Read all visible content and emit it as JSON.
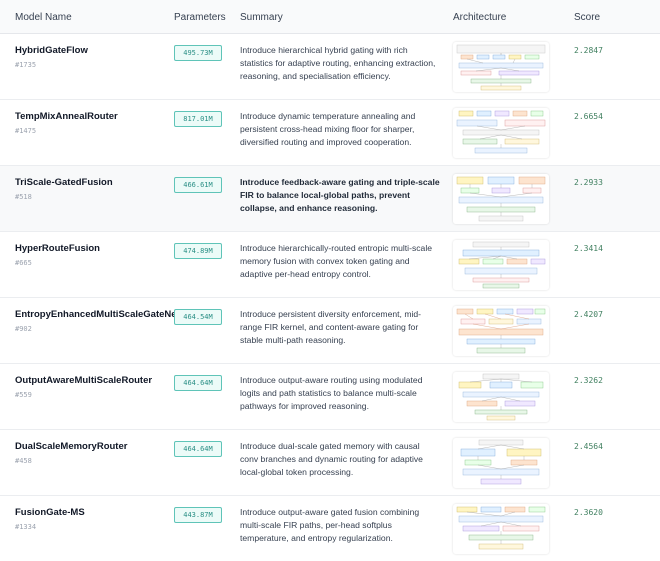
{
  "header": {
    "model_name": "Model Name",
    "parameters": "Parameters",
    "summary": "Summary",
    "architecture": "Architecture",
    "score": "Score"
  },
  "rows": [
    {
      "name": "HybridGateFlow",
      "id": "#1735",
      "params": "495.73M",
      "summary": "Introduce hierarchical hybrid gating with rich statistics for adaptive routing, enhancing extraction, reasoning, and specialisation efficiency.",
      "score": "2.2847"
    },
    {
      "name": "TempMixAnnealRouter",
      "id": "#1475",
      "params": "817.01M",
      "summary": "Introduce dynamic temperature annealing and persistent cross-head mixing floor for sharper, diversified routing and improved cooperation.",
      "score": "2.6654"
    },
    {
      "name": "TriScale-GatedFusion",
      "id": "#518",
      "params": "466.61M",
      "summary": "Introduce feedback-aware gating and triple-scale FIR to balance local-global paths, prevent collapse, and enhance reasoning.",
      "score": "2.2933"
    },
    {
      "name": "HyperRouteFusion",
      "id": "#665",
      "params": "474.89M",
      "summary": "Introduce hierarchically-routed entropic multi-scale memory fusion with convex token gating and adaptive per-head entropy control.",
      "score": "2.3414"
    },
    {
      "name": "EntropyEnhancedMultiScaleGateNet",
      "id": "#902",
      "params": "464.54M",
      "summary": "Introduce persistent diversity enforcement, mid-range FIR kernel, and content-aware gating for stable multi-path reasoning.",
      "score": "2.4207"
    },
    {
      "name": "OutputAwareMultiScaleRouter",
      "id": "#559",
      "params": "464.64M",
      "summary": "Introduce output-aware routing using modulated logits and path statistics to balance multi-scale pathways for improved reasoning.",
      "score": "2.3262"
    },
    {
      "name": "DualScaleMemoryRouter",
      "id": "#458",
      "params": "464.64M",
      "summary": "Introduce dual-scale gated memory with causal conv branches and dynamic routing for adaptive local-global token processing.",
      "score": "2.4564"
    },
    {
      "name": "FusionGate-MS",
      "id": "#1334",
      "params": "443.87M",
      "summary": "Introduce output-aware gated fusion combining multi-scale FIR paths, per-head softplus temperature, and entropy regularization.",
      "score": "2.3620"
    }
  ]
}
